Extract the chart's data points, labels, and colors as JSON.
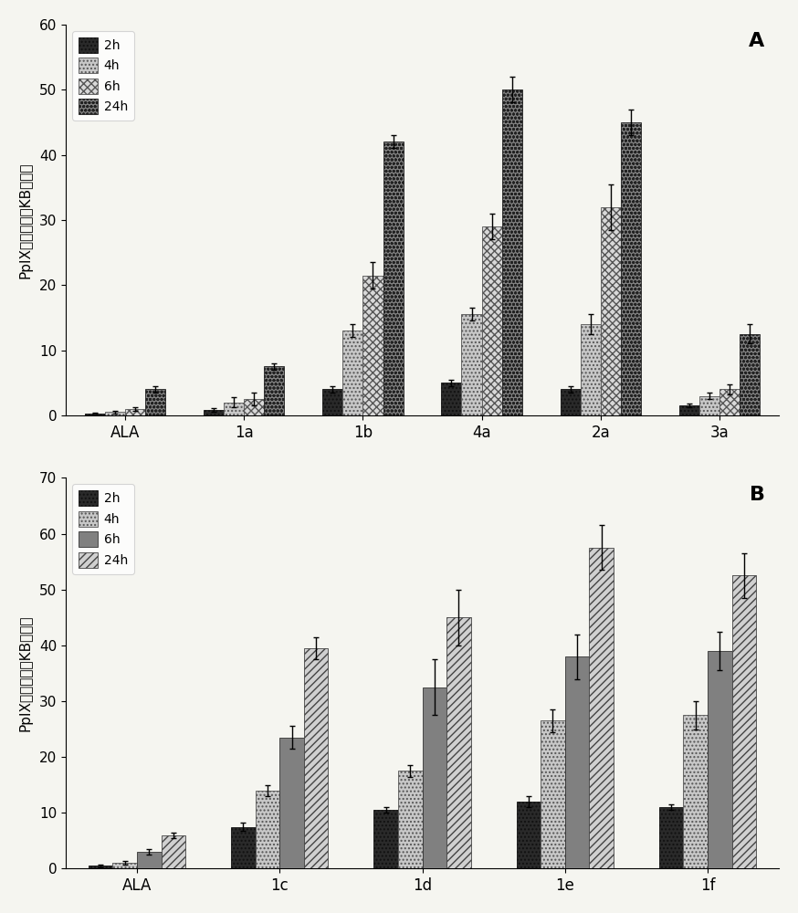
{
  "chart_A": {
    "categories": [
      "ALA",
      "1a",
      "1b",
      "4a",
      "2a",
      "3a"
    ],
    "ylabel": "PpIX荧光强度（KB细胞）",
    "panel_label": "A",
    "ylim": [
      0,
      60
    ],
    "yticks": [
      0,
      10,
      20,
      30,
      40,
      50,
      60
    ],
    "series": {
      "2h": {
        "values": [
          0.3,
          0.8,
          4.0,
          5.0,
          4.0,
          1.5
        ],
        "errors": [
          0.1,
          0.3,
          0.5,
          0.5,
          0.5,
          0.3
        ]
      },
      "4h": {
        "values": [
          0.5,
          2.0,
          13.0,
          15.5,
          14.0,
          3.0
        ],
        "errors": [
          0.2,
          0.8,
          1.0,
          1.0,
          1.5,
          0.5
        ]
      },
      "6h": {
        "values": [
          1.0,
          2.5,
          21.5,
          29.0,
          32.0,
          4.0
        ],
        "errors": [
          0.3,
          1.0,
          2.0,
          2.0,
          3.5,
          0.8
        ]
      },
      "24h": {
        "values": [
          4.0,
          7.5,
          42.0,
          50.0,
          45.0,
          12.5
        ],
        "errors": [
          0.5,
          0.5,
          1.0,
          2.0,
          2.0,
          1.5
        ]
      }
    },
    "bar_styles": {
      "2h": {
        "facecolor": "#2a2a2a",
        "hatch": "....",
        "edgecolor": "#111111"
      },
      "4h": {
        "facecolor": "#c8c8c8",
        "hatch": "....",
        "edgecolor": "#555555"
      },
      "6h": {
        "facecolor": "#d8d8d8",
        "hatch": "xxxx",
        "edgecolor": "#555555"
      },
      "24h": {
        "facecolor": "#808080",
        "hatch": "oooo",
        "edgecolor": "#222222"
      }
    }
  },
  "chart_B": {
    "categories": [
      "ALA",
      "1c",
      "1d",
      "1e",
      "1f"
    ],
    "ylabel": "PpIX荧光强度（KB细胞）",
    "panel_label": "B",
    "ylim": [
      0,
      70
    ],
    "yticks": [
      0,
      10,
      20,
      30,
      40,
      50,
      60,
      70
    ],
    "series": {
      "2h": {
        "values": [
          0.5,
          7.5,
          10.5,
          12.0,
          11.0
        ],
        "errors": [
          0.2,
          0.8,
          0.5,
          1.0,
          0.5
        ]
      },
      "4h": {
        "values": [
          1.0,
          14.0,
          17.5,
          26.5,
          27.5
        ],
        "errors": [
          0.3,
          1.0,
          1.0,
          2.0,
          2.5
        ]
      },
      "6h": {
        "values": [
          3.0,
          23.5,
          32.5,
          38.0,
          39.0
        ],
        "errors": [
          0.5,
          2.0,
          5.0,
          4.0,
          3.5
        ]
      },
      "24h": {
        "values": [
          6.0,
          39.5,
          45.0,
          57.5,
          52.5
        ],
        "errors": [
          0.5,
          2.0,
          5.0,
          4.0,
          4.0
        ]
      }
    },
    "bar_styles": {
      "2h": {
        "facecolor": "#2a2a2a",
        "hatch": "....",
        "edgecolor": "#111111"
      },
      "4h": {
        "facecolor": "#c8c8c8",
        "hatch": "....",
        "edgecolor": "#555555"
      },
      "6h": {
        "facecolor": "#808080",
        "hatch": "",
        "edgecolor": "#333333"
      },
      "24h": {
        "facecolor": "#d0d0d0",
        "hatch": "////",
        "edgecolor": "#444444"
      }
    }
  },
  "series_order": [
    "2h",
    "4h",
    "6h",
    "24h"
  ],
  "bar_width": 0.17,
  "figsize": [
    8.74,
    10.0
  ],
  "dpi": 100,
  "bg_color": "#f5f5f0"
}
